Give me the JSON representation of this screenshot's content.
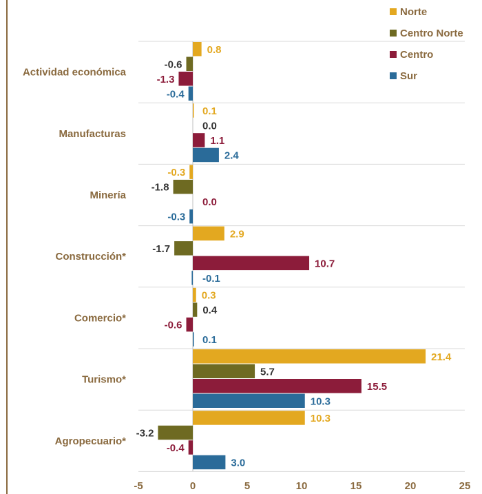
{
  "chart_data": {
    "type": "bar",
    "orientation": "horizontal",
    "categories": [
      "Actividad económica",
      "Manufacturas",
      "Minería",
      "Construcción*",
      "Comercio*",
      "Turismo*",
      "Agropecuario*"
    ],
    "series": [
      {
        "name": "Norte",
        "color": "#e3a820",
        "values": [
          0.8,
          0.1,
          -0.3,
          2.9,
          0.3,
          21.4,
          10.3
        ]
      },
      {
        "name": "Centro Norte",
        "color": "#6e6a22",
        "values": [
          -0.6,
          0.0,
          -1.8,
          -1.7,
          0.4,
          5.7,
          -3.2
        ]
      },
      {
        "name": "Centro",
        "color": "#8c1c3a",
        "values": [
          -1.3,
          1.1,
          0.0,
          10.7,
          -0.6,
          15.5,
          -0.4
        ]
      },
      {
        "name": "Sur",
        "color": "#2a6b99",
        "values": [
          -0.4,
          2.4,
          -0.3,
          -0.1,
          0.1,
          10.3,
          3.0
        ]
      }
    ],
    "label_colors": [
      "#e3a820",
      "#333333",
      "#8c1c3a",
      "#2a6b99"
    ],
    "x_ticks": [
      -5,
      0,
      5,
      10,
      15,
      20,
      25
    ],
    "xlim": [
      -5,
      25
    ],
    "grid": "horizontal separators between categories",
    "legend_position": "top-right",
    "axis_color": "#8a6a3f",
    "grid_color": "#d9d9d9"
  }
}
